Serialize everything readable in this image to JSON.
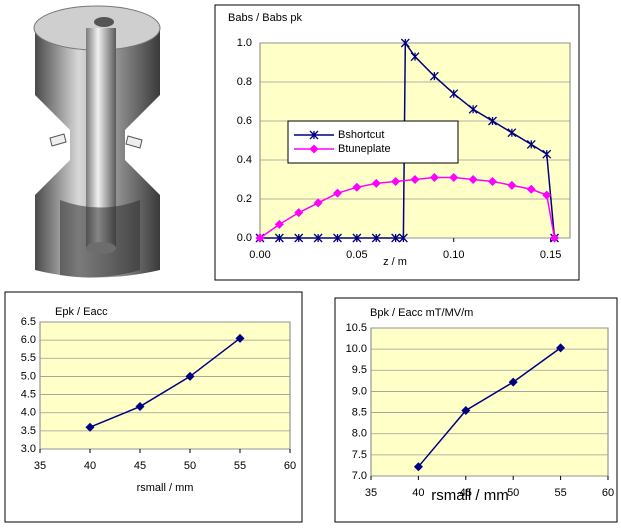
{
  "chart_data": [
    {
      "type": "line",
      "title": "Babs / Babs pk",
      "xlabel": "z / m",
      "xlim": [
        0,
        0.16
      ],
      "xticks": [
        {
          "value": 0,
          "label": "0.00"
        },
        {
          "value": 0.05,
          "label": "0.05"
        },
        {
          "value": 0.1,
          "label": "0.10"
        },
        {
          "value": 0.15,
          "label": "0.15"
        }
      ],
      "ylim": [
        0,
        1
      ],
      "yticks": [
        {
          "value": 0,
          "label": "0.0"
        },
        {
          "value": 0.2,
          "label": "0.2"
        },
        {
          "value": 0.4,
          "label": "0.4"
        },
        {
          "value": 0.6,
          "label": "0.6"
        },
        {
          "value": 0.8,
          "label": "0.8"
        },
        {
          "value": 1,
          "label": "1.0"
        }
      ],
      "grid": true,
      "legend": "center left",
      "series": [
        {
          "name": "Bshortcut",
          "color": "#000080",
          "marker": "asterisk",
          "x": [
            0,
            0.01,
            0.02,
            0.03,
            0.04,
            0.05,
            0.06,
            0.07,
            0.074,
            0.075,
            0.08,
            0.09,
            0.1,
            0.11,
            0.12,
            0.13,
            0.14,
            0.148,
            0.152
          ],
          "values": [
            0,
            0,
            0,
            0,
            0,
            0,
            0,
            0,
            0,
            1.0,
            0.93,
            0.83,
            0.74,
            0.66,
            0.6,
            0.54,
            0.48,
            0.43,
            0
          ]
        },
        {
          "name": "Btuneplate",
          "color": "#ff00ff",
          "marker": "diamond",
          "x": [
            0,
            0.01,
            0.02,
            0.03,
            0.04,
            0.05,
            0.06,
            0.07,
            0.08,
            0.09,
            0.1,
            0.11,
            0.12,
            0.13,
            0.14,
            0.148,
            0.152
          ],
          "values": [
            0,
            0.07,
            0.13,
            0.18,
            0.23,
            0.26,
            0.28,
            0.29,
            0.3,
            0.31,
            0.31,
            0.3,
            0.29,
            0.27,
            0.25,
            0.22,
            0
          ]
        }
      ]
    },
    {
      "type": "line",
      "title": "Epk / Eacc",
      "xlabel": "rsmall / mm",
      "xlim": [
        35,
        60
      ],
      "xticks": [
        35,
        40,
        45,
        50,
        55,
        60
      ],
      "ylim": [
        3,
        6.5
      ],
      "yticks": [
        {
          "value": 3,
          "label": "3.0"
        },
        {
          "value": 3.5,
          "label": "3.5"
        },
        {
          "value": 4,
          "label": "4.0"
        },
        {
          "value": 4.5,
          "label": "4.5"
        },
        {
          "value": 5,
          "label": "5.0"
        },
        {
          "value": 5.5,
          "label": "5.5"
        },
        {
          "value": 6,
          "label": "6.0"
        },
        {
          "value": 6.5,
          "label": "6.5"
        }
      ],
      "grid": true,
      "series": [
        {
          "color": "#000080",
          "marker": "diamond",
          "x": [
            40,
            45,
            50,
            55
          ],
          "values": [
            3.6,
            4.17,
            5.0,
            6.05
          ]
        }
      ]
    },
    {
      "type": "line",
      "title": "Bpk / Eacc   mT/MV/m",
      "xlabel": "rsmall / mm",
      "xlim": [
        35,
        60
      ],
      "xticks": [
        35,
        40,
        45,
        50,
        55,
        60
      ],
      "ylim": [
        7,
        10.5
      ],
      "yticks": [
        {
          "value": 7,
          "label": "7.0"
        },
        {
          "value": 7.5,
          "label": "7.5"
        },
        {
          "value": 8,
          "label": "8.0"
        },
        {
          "value": 8.5,
          "label": "8.5"
        },
        {
          "value": 9,
          "label": "9.0"
        },
        {
          "value": 9.5,
          "label": "9.5"
        },
        {
          "value": 10,
          "label": "10.0"
        },
        {
          "value": 10.5,
          "label": "10.5"
        }
      ],
      "grid": true,
      "series": [
        {
          "color": "#000080",
          "marker": "diamond",
          "x": [
            40,
            45,
            50,
            55
          ],
          "values": [
            7.22,
            8.55,
            9.22,
            10.03
          ]
        }
      ]
    }
  ]
}
